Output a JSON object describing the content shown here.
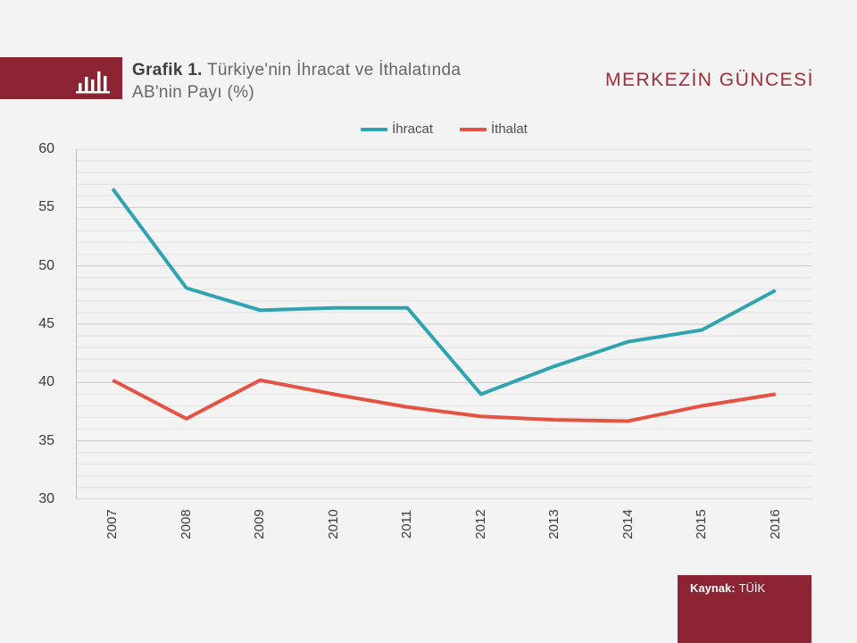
{
  "header": {
    "logo_icon": "bar-chart-icon",
    "title_bold": "Grafik 1.",
    "title_line1": "Türkiye'nin İhracat ve İthalatında",
    "title_line2": "AB'nin Payı (%)",
    "brand": "MERKEZİN GÜNCESİ"
  },
  "source": {
    "label": "Kaynak:",
    "value": "TÜİK"
  },
  "chart_data": {
    "type": "line",
    "title": "Türkiye'nin İhracat ve İthalatında AB'nin Payı (%)",
    "categories": [
      "2007",
      "2008",
      "2009",
      "2010",
      "2011",
      "2012",
      "2013",
      "2014",
      "2015",
      "2016"
    ],
    "series": [
      {
        "name": "İhracat",
        "color": "#2FA4B0",
        "values": [
          56.6,
          48.1,
          46.2,
          46.4,
          46.4,
          39.0,
          41.4,
          43.5,
          44.5,
          47.9
        ]
      },
      {
        "name": "İthalat",
        "color": "#E55241",
        "values": [
          40.2,
          36.9,
          40.2,
          39.0,
          37.9,
          37.1,
          36.8,
          36.7,
          38.0,
          39.0
        ]
      }
    ],
    "ylim": [
      30,
      60
    ],
    "ytick_step": 5,
    "minor_grid_step": 1,
    "grid": "horizontal",
    "legend_position": "top-center",
    "x_label_rotation": -90
  },
  "theme": {
    "background": "#F3F3F3",
    "maroon": "#8C2434",
    "brand_color": "#9A2F38",
    "grid_minor": "#E2E2E2",
    "grid_major": "#CBCBCB",
    "axis_line": "#BDBDBD",
    "axis_label_color": "#3A3A3A",
    "legend_text_color": "#4D4D4D"
  }
}
